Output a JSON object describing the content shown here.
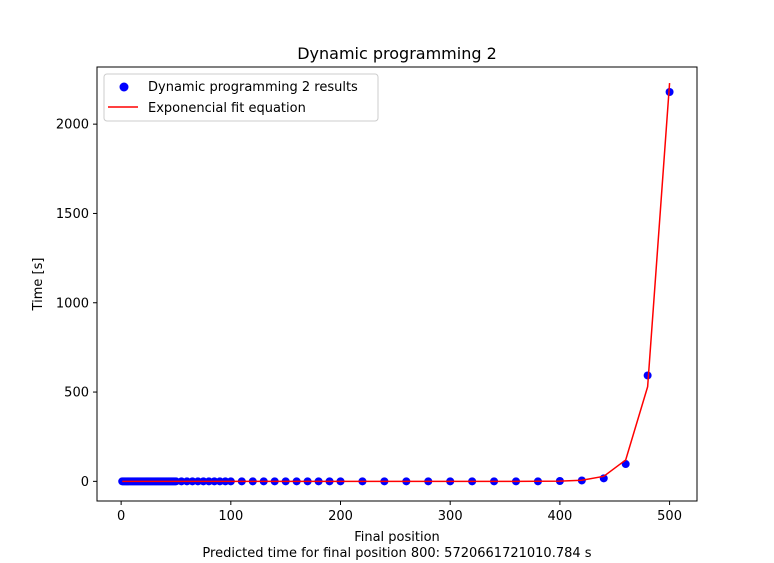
{
  "chart_data": {
    "type": "scatter",
    "title": "Dynamic programming 2",
    "xlabel": "Final position",
    "ylabel": "Time [s]",
    "footer": "Predicted time for final position 800: 5720661721010.784 s",
    "xlim": [
      -22,
      525
    ],
    "ylim": [
      -110,
      2320
    ],
    "x_ticks": [
      0,
      100,
      200,
      300,
      400,
      500
    ],
    "y_ticks": [
      0,
      500,
      1000,
      1500,
      2000
    ],
    "grid": false,
    "legend_position": "upper left",
    "colors": {
      "points": "#0000ff",
      "fit": "#ff0000"
    },
    "series": [
      {
        "name": "Dynamic programming 2 results",
        "kind": "scatter",
        "x": [
          1,
          2,
          3,
          4,
          5,
          6,
          7,
          8,
          9,
          10,
          11,
          12,
          13,
          14,
          15,
          16,
          17,
          18,
          19,
          20,
          21,
          22,
          23,
          24,
          25,
          26,
          27,
          28,
          29,
          30,
          31,
          32,
          33,
          34,
          35,
          36,
          37,
          38,
          39,
          40,
          41,
          42,
          43,
          44,
          45,
          46,
          47,
          48,
          49,
          50,
          55,
          60,
          65,
          70,
          75,
          80,
          85,
          90,
          95,
          100,
          110,
          120,
          130,
          140,
          150,
          160,
          170,
          180,
          190,
          200,
          220,
          240,
          260,
          280,
          300,
          320,
          340,
          360,
          380,
          400,
          420,
          440,
          460,
          480,
          500
        ],
        "y": [
          0,
          0,
          0,
          0,
          0,
          0,
          0,
          0,
          0,
          0,
          0,
          0,
          0,
          0,
          0,
          0,
          0,
          0,
          0,
          0,
          0,
          0,
          0,
          0,
          0,
          0,
          0,
          0,
          0,
          0,
          0,
          0,
          0,
          0,
          0,
          0,
          0,
          0,
          0,
          0,
          0,
          0,
          0,
          0,
          0,
          0,
          0,
          0,
          0,
          0,
          0,
          0,
          0,
          0,
          0,
          0,
          0,
          0,
          0,
          0,
          0,
          0,
          0,
          0,
          0,
          0,
          0,
          0,
          0,
          0,
          0,
          0,
          0,
          0,
          0,
          0,
          0,
          0,
          0,
          2,
          5,
          17,
          97,
          593,
          2180
        ]
      },
      {
        "name": "Exponencial fit equation",
        "kind": "line",
        "x": [
          1,
          50,
          100,
          150,
          200,
          250,
          300,
          340,
          360,
          380,
          400,
          420,
          440,
          460,
          480,
          500
        ],
        "y": [
          0,
          0,
          0,
          0,
          0,
          0,
          0,
          0,
          0,
          0.3,
          1,
          6,
          28,
          120,
          530,
          2230
        ]
      }
    ]
  }
}
